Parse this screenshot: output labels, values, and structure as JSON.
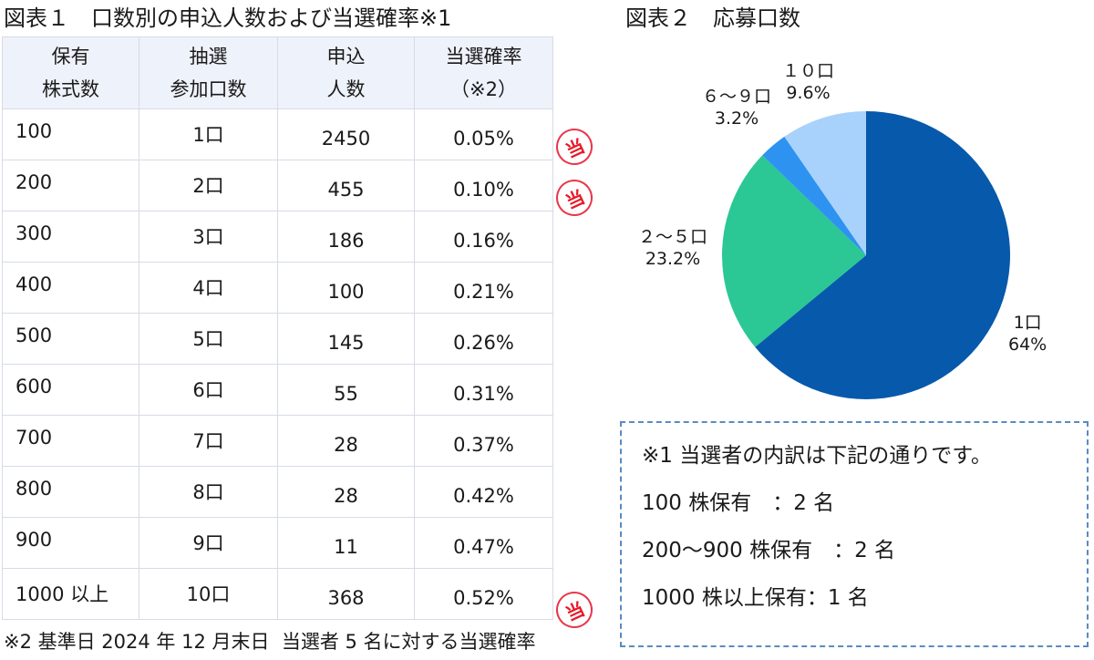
{
  "table1": {
    "title": "図表１　口数別の申込人数および当選確率※1",
    "headers": [
      {
        "line1": "保有",
        "line2": "株式数"
      },
      {
        "line1": "抽選",
        "line2": "参加口数"
      },
      {
        "line1": "申込",
        "line2": "人数"
      },
      {
        "line1": "当選確率",
        "line2": "（※2）"
      }
    ],
    "rows": [
      {
        "shares": "100",
        "units": "1口",
        "applicants": "2450",
        "rate": "0.05%",
        "winner": true
      },
      {
        "shares": "200",
        "units": "2口",
        "applicants": "455",
        "rate": "0.10%",
        "winner": true
      },
      {
        "shares": "300",
        "units": "3口",
        "applicants": "186",
        "rate": "0.16%",
        "winner": false
      },
      {
        "shares": "400",
        "units": "4口",
        "applicants": "100",
        "rate": "0.21%",
        "winner": false
      },
      {
        "shares": "500",
        "units": "5口",
        "applicants": "145",
        "rate": "0.26%",
        "winner": false
      },
      {
        "shares": "600",
        "units": "6口",
        "applicants": "55",
        "rate": "0.31%",
        "winner": false
      },
      {
        "shares": "700",
        "units": "7口",
        "applicants": "28",
        "rate": "0.37%",
        "winner": false
      },
      {
        "shares": "800",
        "units": "8口",
        "applicants": "28",
        "rate": "0.42%",
        "winner": false
      },
      {
        "shares": "900",
        "units": "9口",
        "applicants": "11",
        "rate": "0.47%",
        "winner": false
      },
      {
        "shares": "1000 以上",
        "units": "10口",
        "applicants": "368",
        "rate": "0.52%",
        "winner": true
      }
    ],
    "winner_stamp": "当",
    "footnote": "※2 基準日 2024 年 12 月末日  当選者 5 名に対する当選確率"
  },
  "table2": {
    "title": "図表２　応募口数"
  },
  "note": {
    "lines": [
      "※1 当選者の内訳は下記の通りです。",
      "100 株保有　：2 名",
      "200～900 株保有　：2 名",
      "1000 株以上保有：1 名"
    ]
  },
  "colors": {
    "slice_1": "#0659ab",
    "slice_2_5": "#2bc795",
    "slice_6_9": "#2e93f0",
    "slice_10": "#a8d2fb",
    "stamp": "#e8374a",
    "note_border": "#5a8ac4",
    "header_bg": "#eef2fa"
  },
  "chart_data": [
    {
      "type": "table",
      "title": "図表１　口数別の申込人数および当選確率※1",
      "columns": [
        "保有株式数",
        "抽選参加口数",
        "申込人数",
        "当選確率（※2）"
      ],
      "rows": [
        [
          "100",
          "1口",
          2450,
          "0.05%"
        ],
        [
          "200",
          "2口",
          455,
          "0.10%"
        ],
        [
          "300",
          "3口",
          186,
          "0.16%"
        ],
        [
          "400",
          "4口",
          100,
          "0.21%"
        ],
        [
          "500",
          "5口",
          145,
          "0.26%"
        ],
        [
          "600",
          "6口",
          55,
          "0.31%"
        ],
        [
          "700",
          "7口",
          28,
          "0.37%"
        ],
        [
          "800",
          "8口",
          28,
          "0.42%"
        ],
        [
          "900",
          "9口",
          11,
          "0.47%"
        ],
        [
          "1000 以上",
          "10口",
          368,
          "0.52%"
        ]
      ],
      "annotations": [
        "当 stamps on rows 100, 200, 1000 以上"
      ]
    },
    {
      "type": "pie",
      "title": "図表２　応募口数",
      "categories": [
        "1口",
        "２～５口",
        "６～９口",
        "１０口"
      ],
      "values": [
        64,
        23.2,
        3.2,
        9.6
      ],
      "labels": [
        "1口\n64%",
        "２～５口\n23.2%",
        "６～９口\n3.2%",
        "１０口\n9.6%"
      ],
      "colors": [
        "#0659ab",
        "#2bc795",
        "#2e93f0",
        "#a8d2fb"
      ],
      "start_angle": "12 o'clock, clockwise",
      "legend": "none (data labels outside)"
    }
  ]
}
